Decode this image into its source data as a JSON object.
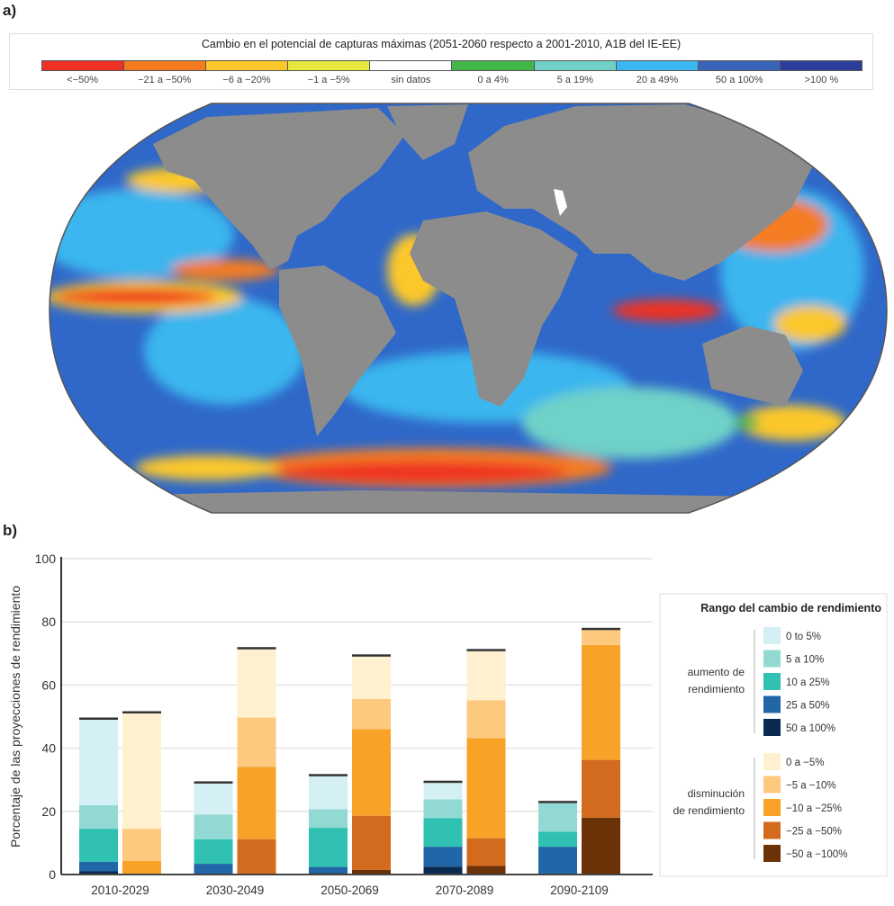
{
  "panel_a": {
    "label": "a)",
    "legend_title": "Cambio en el potencial de capturas máximas (2051-2060 respecto a 2001-2010, A1B del IE-EE)",
    "legend_items": [
      {
        "label": "<−50%",
        "color": "#ee3124"
      },
      {
        "label": "−21 a −50%",
        "color": "#f47b20"
      },
      {
        "label": "−6 a −20%",
        "color": "#fcc72a"
      },
      {
        "label": "−1 a −5%",
        "color": "#e6e93c"
      },
      {
        "label": "sin datos",
        "color": "#ffffff"
      },
      {
        "label": "0 a 4%",
        "color": "#43b649"
      },
      {
        "label": "5 a 19%",
        "color": "#6fd1c8"
      },
      {
        "label": "20 a 49%",
        "color": "#3bb6ee"
      },
      {
        "label": "50 a 100%",
        "color": "#3a64b8"
      },
      {
        "label": ">100 %",
        "color": "#2b3f9a"
      }
    ]
  },
  "chart_data": {
    "type": "bar",
    "panel_label": "b)",
    "title": "",
    "xlabel": "",
    "ylabel": "Porcentaje de las proyecciones de rendimiento",
    "ylim": [
      0,
      100
    ],
    "yticks": [
      "0",
      "20",
      "40",
      "60",
      "80",
      "100"
    ],
    "ytick_values": [
      0,
      20,
      40,
      60,
      80,
      100
    ],
    "grid": true,
    "categories": [
      "2010-2029",
      "2030-2049",
      "2050-2069",
      "2070-2089",
      "2090-2109"
    ],
    "stacked": true,
    "legend": {
      "title": "Rango del cambio de rendimiento",
      "placement": "right",
      "group_increase": "aumento de rendimiento",
      "group_decrease": "disminución de rendimiento"
    },
    "increase_series": [
      {
        "name": "50 a 100%",
        "color": "#0b2a4f",
        "values": [
          1,
          0,
          0.5,
          2.5,
          0
        ]
      },
      {
        "name": "25 a 50%",
        "color": "#2166a6",
        "values": [
          3,
          3.4,
          1.9,
          6.3,
          8.8
        ]
      },
      {
        "name": "10 a 25%",
        "color": "#30c1b3",
        "values": [
          10.5,
          7.8,
          12.4,
          9.1,
          4.8
        ]
      },
      {
        "name": "5 a 10%",
        "color": "#93d9d3",
        "values": [
          7.5,
          7.8,
          5.9,
          5.9,
          9
        ]
      },
      {
        "name": "0 to 5%",
        "color": "#d4f0f4",
        "values": [
          27,
          9.8,
          10.4,
          5.2,
          0
        ]
      }
    ],
    "decrease_series": [
      {
        "name": "−50 a −100%",
        "color": "#6b3208",
        "values": [
          0,
          0,
          1.5,
          2.7,
          18
        ]
      },
      {
        "name": "−25 a −50%",
        "color": "#d26b1d",
        "values": [
          0,
          11.2,
          17.1,
          8.8,
          18.3
        ]
      },
      {
        "name": "−10 a −25%",
        "color": "#f9a228",
        "values": [
          4.3,
          22.9,
          27.4,
          31.7,
          36.4
        ]
      },
      {
        "name": "−5 a −10%",
        "color": "#fdc97e",
        "values": [
          10.2,
          15.6,
          9.6,
          12,
          4.7
        ]
      },
      {
        "name": "0 a −5%",
        "color": "#fff0cf",
        "values": [
          36.5,
          21.6,
          13.4,
          15.5,
          0
        ]
      }
    ]
  }
}
